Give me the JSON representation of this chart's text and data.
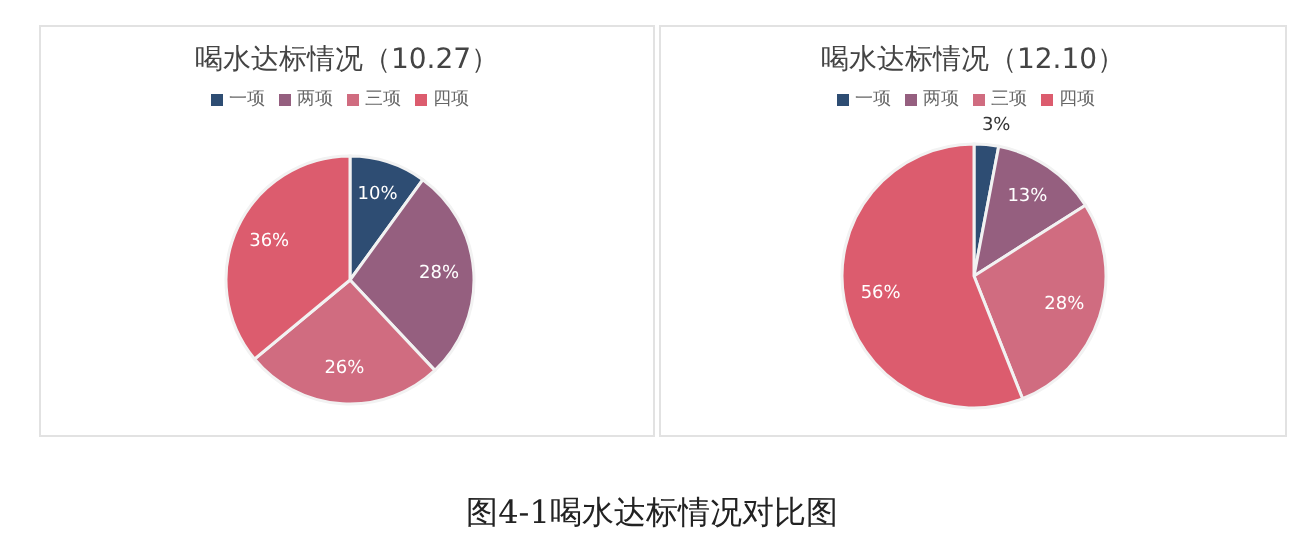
{
  "chart_data": [
    {
      "type": "pie",
      "title": "喝水达标情况（10.27）",
      "categories": [
        "一项",
        "两项",
        "三项",
        "四项"
      ],
      "values": [
        10,
        28,
        26,
        36
      ],
      "value_labels": [
        "10%",
        "28%",
        "26%",
        "36%"
      ],
      "colors": [
        "#2e4d73",
        "#955f7f",
        "#d06c80",
        "#dc5c6e"
      ],
      "legend": "top",
      "annotations": [
        "图4-1喝水达标情况对比图"
      ]
    },
    {
      "type": "pie",
      "title": "喝水达标情况（12.10）",
      "categories": [
        "一项",
        "两项",
        "三项",
        "四项"
      ],
      "values": [
        3,
        13,
        28,
        56
      ],
      "value_labels": [
        "3%",
        "13%",
        "28%",
        "56%"
      ],
      "colors": [
        "#2e4d73",
        "#955f7f",
        "#d06c80",
        "#dc5c6e"
      ],
      "legend": "top"
    }
  ]
}
